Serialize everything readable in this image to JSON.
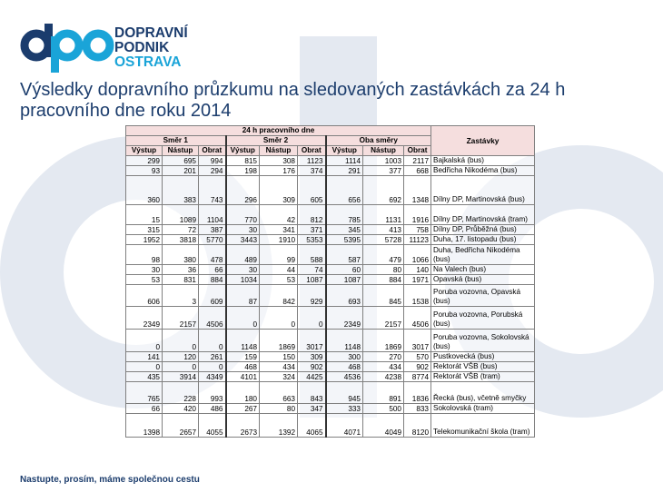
{
  "logo": {
    "line1": "DOPRAVNÍ",
    "line2": "PODNIK",
    "line3": "OSTRAVA"
  },
  "title": "Výsledky dopravního průzkumu na sledovaných zastávkách za 24 h pracovního dne roku 2014",
  "footer": "Nastupte, prosím, máme společnou cestu",
  "colors": {
    "navy": "#1b3c6d",
    "cyan": "#1aa4d8",
    "header_fill": "#f5dede",
    "watermark": "#e4e9f1"
  },
  "table": {
    "top_header": "24 h pracovního dne",
    "stops_header": "Zastávky",
    "groups": [
      "Směr 1",
      "Směr 2",
      "Oba směry"
    ],
    "columns": [
      "Výstup",
      "Nástup",
      "Obrat",
      "Výstup",
      "Nástup",
      "Obrat",
      "Výstup",
      "Nástup",
      "Obrat"
    ],
    "rows": [
      {
        "v": [
          "299",
          "695",
          "994",
          "815",
          "308",
          "1123",
          "1114",
          "1003",
          "2117"
        ],
        "stop": "Bajkalská (bus)",
        "h": 11
      },
      {
        "v": [
          "93",
          "201",
          "294",
          "198",
          "176",
          "374",
          "291",
          "377",
          "668"
        ],
        "stop": "Bedřicha Nikodéma (bus)",
        "h": 11
      },
      {
        "v": [
          "360",
          "383",
          "743",
          "296",
          "309",
          "605",
          "656",
          "692",
          "1348"
        ],
        "stop": "Dílny DP, Martinovská (bus)",
        "h": 32
      },
      {
        "v": [
          "15",
          "1089",
          "1104",
          "770",
          "42",
          "812",
          "785",
          "1131",
          "1916"
        ],
        "stop": "Dílny DP, Martinovská (tram)",
        "h": 22
      },
      {
        "v": [
          "315",
          "72",
          "387",
          "30",
          "341",
          "371",
          "345",
          "413",
          "758"
        ],
        "stop": "Dílny DP, Průběžná (bus)",
        "h": 11
      },
      {
        "v": [
          "1952",
          "3818",
          "5770",
          "3443",
          "1910",
          "5353",
          "5395",
          "5728",
          "11123"
        ],
        "stop": "Duha, 17. listopadu (bus)",
        "h": 11
      },
      {
        "v": [
          "98",
          "380",
          "478",
          "489",
          "99",
          "588",
          "587",
          "479",
          "1066"
        ],
        "stop": "Duha, Bedřicha Nikodéma (bus)",
        "h": 22
      },
      {
        "v": [
          "30",
          "36",
          "66",
          "30",
          "44",
          "74",
          "60",
          "80",
          "140"
        ],
        "stop": "Na Valech (bus)",
        "h": 11
      },
      {
        "v": [
          "53",
          "831",
          "884",
          "1034",
          "53",
          "1087",
          "1087",
          "884",
          "1971"
        ],
        "stop": "Opavská (bus)",
        "h": 11
      },
      {
        "v": [
          "606",
          "3",
          "609",
          "87",
          "842",
          "929",
          "693",
          "845",
          "1538"
        ],
        "stop": "Poruba vozovna, Opavská (bus)",
        "h": 24
      },
      {
        "v": [
          "2349",
          "2157",
          "4506",
          "0",
          "0",
          "0",
          "2349",
          "2157",
          "4506"
        ],
        "stop": "Poruba vozovna, Porubská (bus)",
        "h": 25
      },
      {
        "v": [
          "0",
          "0",
          "0",
          "1148",
          "1869",
          "3017",
          "1148",
          "1869",
          "3017"
        ],
        "stop": "Poruba vozovna, Sokolovská (bus)",
        "h": 25
      },
      {
        "v": [
          "141",
          "120",
          "261",
          "159",
          "150",
          "309",
          "300",
          "270",
          "570"
        ],
        "stop": "Pustkovecká (bus)",
        "h": 11
      },
      {
        "v": [
          "0",
          "0",
          "0",
          "468",
          "434",
          "902",
          "468",
          "434",
          "902"
        ],
        "stop": "Rektorát VŠB (bus)",
        "h": 11
      },
      {
        "v": [
          "435",
          "3914",
          "4349",
          "4101",
          "324",
          "4425",
          "4536",
          "4238",
          "8774"
        ],
        "stop": "Rektorát VŠB (tram)",
        "h": 11
      },
      {
        "v": [
          "765",
          "228",
          "993",
          "180",
          "663",
          "843",
          "945",
          "891",
          "1836"
        ],
        "stop": "Řecká (bus), včetně smyčky",
        "h": 24
      },
      {
        "v": [
          "66",
          "420",
          "486",
          "267",
          "80",
          "347",
          "333",
          "500",
          "833"
        ],
        "stop": "Sokolovská (tram)",
        "h": 11
      },
      {
        "v": [
          "1398",
          "2657",
          "4055",
          "2673",
          "1392",
          "4065",
          "4071",
          "4049",
          "8120"
        ],
        "stop": "Telekomunikační škola (tram)",
        "h": 26
      }
    ]
  }
}
